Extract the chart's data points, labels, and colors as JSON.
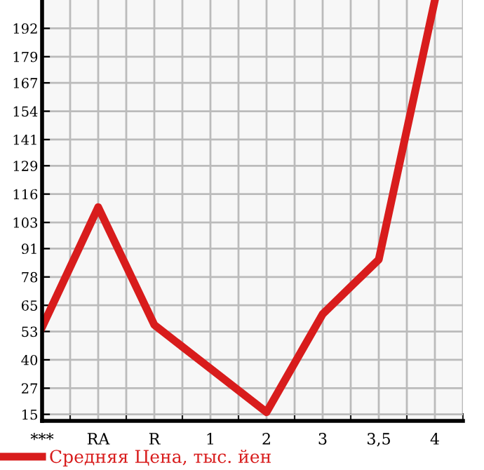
{
  "chart_data": {
    "type": "line",
    "categories": [
      "***",
      "RA",
      "R",
      "1",
      "2",
      "3",
      "3,5",
      "4"
    ],
    "series": [
      {
        "name": "Средняя Цена, тыс. йен",
        "color": "#d81c1c",
        "values": [
          55,
          110,
          56,
          36,
          16,
          61,
          86,
          205
        ]
      }
    ],
    "ylim": [
      12,
      205
    ],
    "yticks": [
      15,
      27,
      40,
      53,
      65,
      78,
      91,
      103,
      116,
      129,
      141,
      154,
      167,
      179,
      192
    ],
    "grid": true,
    "legend": "bottom",
    "marker": "none",
    "line_style": "solid"
  }
}
